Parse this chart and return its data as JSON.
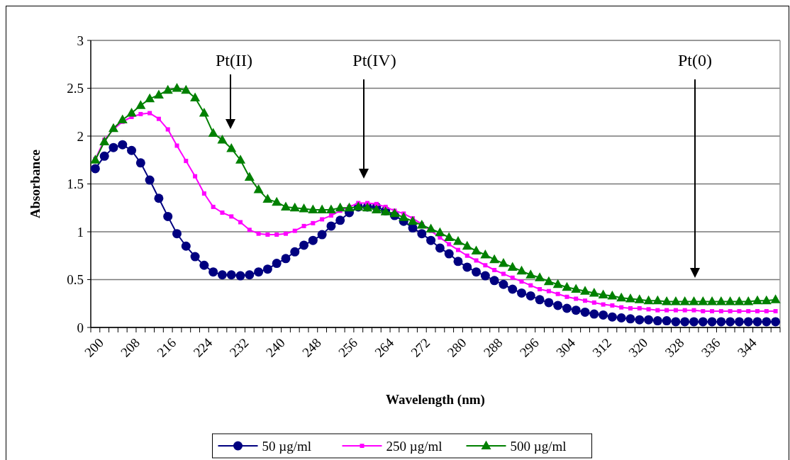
{
  "chart_data": {
    "type": "line",
    "xlabel": "Wavelength (nm)",
    "ylabel": "Absorbance",
    "categories": [
      "200",
      null,
      null,
      null,
      "208",
      null,
      null,
      null,
      "216",
      null,
      null,
      null,
      "224",
      null,
      null,
      null,
      "232",
      null,
      null,
      null,
      "240",
      null,
      null,
      null,
      "248",
      null,
      null,
      null,
      "256",
      null,
      null,
      null,
      "264",
      null,
      null,
      null,
      "272",
      null,
      null,
      null,
      "280",
      null,
      null,
      null,
      "288",
      null,
      null,
      null,
      "296",
      null,
      null,
      null,
      "304",
      null,
      null,
      null,
      "312",
      null,
      null,
      null,
      "320",
      null,
      null,
      null,
      "328",
      null,
      null,
      null,
      "336",
      null,
      null,
      null,
      "344",
      null,
      null,
      null
    ],
    "ylim": [
      0,
      3
    ],
    "yticks": [
      0,
      0.5,
      1,
      1.5,
      2,
      2.5,
      3
    ],
    "grid": "y",
    "legend": "bottom",
    "series": [
      {
        "name": "50 µg/ml",
        "color": "#000080",
        "marker": "circle",
        "values": [
          1.66,
          1.79,
          1.88,
          1.91,
          1.85,
          1.72,
          1.54,
          1.35,
          1.16,
          0.98,
          0.85,
          0.74,
          0.65,
          0.58,
          0.55,
          0.55,
          0.54,
          0.55,
          0.58,
          0.61,
          0.67,
          0.72,
          0.79,
          0.86,
          0.91,
          0.97,
          1.06,
          1.12,
          1.2,
          1.26,
          1.26,
          1.26,
          1.22,
          1.17,
          1.11,
          1.04,
          0.98,
          0.91,
          0.83,
          0.77,
          0.69,
          0.63,
          0.58,
          0.54,
          0.49,
          0.45,
          0.4,
          0.36,
          0.33,
          0.29,
          0.26,
          0.23,
          0.2,
          0.18,
          0.16,
          0.14,
          0.13,
          0.11,
          0.1,
          0.09,
          0.08,
          0.08,
          0.07,
          0.07,
          0.06,
          0.06,
          0.06,
          0.06,
          0.06,
          0.06,
          0.06,
          0.06,
          0.06,
          0.06,
          0.06,
          0.06
        ]
      },
      {
        "name": "250 µg/ml",
        "color": "#ff00ff",
        "marker": "square",
        "values": [
          1.76,
          1.96,
          2.07,
          2.15,
          2.2,
          2.23,
          2.24,
          2.18,
          2.07,
          1.9,
          1.74,
          1.58,
          1.4,
          1.26,
          1.2,
          1.16,
          1.1,
          1.02,
          0.98,
          0.97,
          0.97,
          0.98,
          1.01,
          1.06,
          1.09,
          1.13,
          1.17,
          1.22,
          1.26,
          1.3,
          1.3,
          1.29,
          1.26,
          1.22,
          1.19,
          1.14,
          1.08,
          1.01,
          0.94,
          0.87,
          0.81,
          0.75,
          0.7,
          0.65,
          0.6,
          0.56,
          0.52,
          0.48,
          0.44,
          0.4,
          0.38,
          0.35,
          0.32,
          0.3,
          0.28,
          0.26,
          0.24,
          0.23,
          0.21,
          0.2,
          0.2,
          0.19,
          0.18,
          0.18,
          0.18,
          0.18,
          0.18,
          0.17,
          0.17,
          0.17,
          0.17,
          0.17,
          0.17,
          0.17,
          0.17,
          0.17
        ]
      },
      {
        "name": "500 µg/ml",
        "color": "#008000",
        "marker": "triangle",
        "values": [
          1.75,
          1.94,
          2.08,
          2.17,
          2.24,
          2.32,
          2.39,
          2.43,
          2.48,
          2.5,
          2.48,
          2.4,
          2.24,
          2.03,
          1.96,
          1.87,
          1.75,
          1.57,
          1.44,
          1.34,
          1.31,
          1.26,
          1.25,
          1.24,
          1.23,
          1.23,
          1.23,
          1.25,
          1.25,
          1.26,
          1.25,
          1.23,
          1.21,
          1.19,
          1.15,
          1.11,
          1.07,
          1.03,
          0.99,
          0.94,
          0.9,
          0.85,
          0.8,
          0.76,
          0.71,
          0.67,
          0.63,
          0.59,
          0.55,
          0.52,
          0.48,
          0.45,
          0.42,
          0.4,
          0.38,
          0.36,
          0.34,
          0.33,
          0.31,
          0.3,
          0.29,
          0.28,
          0.28,
          0.27,
          0.27,
          0.27,
          0.27,
          0.27,
          0.27,
          0.27,
          0.27,
          0.27,
          0.27,
          0.28,
          0.28,
          0.29
        ]
      }
    ],
    "annotations": [
      "Pt(II)",
      "Pt(IV)",
      "Pt(0)"
    ]
  }
}
